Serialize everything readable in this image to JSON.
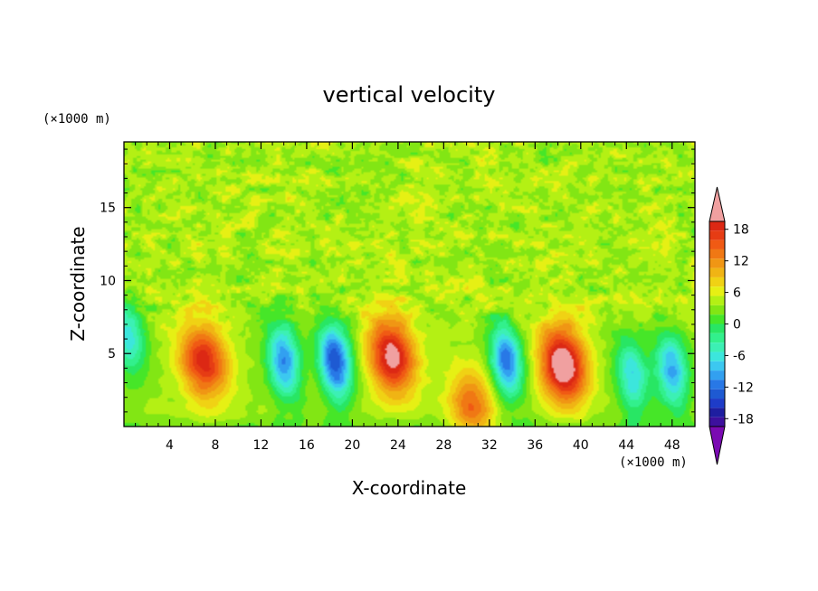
{
  "chart_data": {
    "type": "heatmap",
    "title": "vertical velocity",
    "xlabel": "X-coordinate",
    "ylabel": "Z-coordinate",
    "x_unit": "(×1000 m)",
    "y_unit": "(×1000 m)",
    "xlim": [
      0,
      50
    ],
    "ylim": [
      0,
      19.5
    ],
    "x_ticks": [
      4,
      8,
      12,
      16,
      20,
      24,
      28,
      32,
      36,
      40,
      44,
      48
    ],
    "y_ticks": [
      5,
      10,
      15
    ],
    "colorbar": {
      "levels": [
        -21,
        -19.5,
        -18,
        -16.5,
        -15,
        -13.5,
        -12,
        -10.5,
        -9,
        -7.5,
        -6,
        -4.5,
        -3,
        -1.5,
        0,
        1.5,
        3,
        4.5,
        6,
        7.5,
        9,
        10.5,
        12,
        13.5,
        15,
        16.5,
        18,
        19.5,
        21
      ],
      "tick_labels": [
        "18",
        "12",
        "6",
        "0",
        "-6",
        "-12",
        "-18"
      ],
      "tick_values": [
        18,
        12,
        6,
        0,
        -6,
        -12,
        -18
      ],
      "extend": "both",
      "colors": [
        "#7a0ab2",
        "#3d109e",
        "#1e1ea0",
        "#1e3cc8",
        "#1e5ad2",
        "#2878e6",
        "#32a0f0",
        "#3cc8f0",
        "#3ce6dc",
        "#3cf0b4",
        "#32f08c",
        "#28e664",
        "#46e628",
        "#82e614",
        "#b4f014",
        "#e6f014",
        "#f0d214",
        "#f0b414",
        "#f09614",
        "#f07814",
        "#f05a14",
        "#e63c14",
        "#dc2814",
        "#f0a0a0"
      ]
    },
    "features": [
      {
        "kind": "updraft",
        "x": 7,
        "z": 4.5,
        "peak": 13
      },
      {
        "kind": "downdraft",
        "x": 14,
        "z": 4.5,
        "peak": -12
      },
      {
        "kind": "downdraft",
        "x": 18.5,
        "z": 4.5,
        "peak": -15
      },
      {
        "kind": "updraft",
        "x": 23.5,
        "z": 4.8,
        "peak": 15
      },
      {
        "kind": "updraft",
        "x": 30.5,
        "z": 1.3,
        "peak": 9
      },
      {
        "kind": "downdraft",
        "x": 33.5,
        "z": 4.5,
        "peak": -13
      },
      {
        "kind": "updraft",
        "x": 38.5,
        "z": 4.2,
        "peak": 17
      },
      {
        "kind": "downdraft",
        "x": 44.5,
        "z": 3.5,
        "peak": -9
      },
      {
        "kind": "downdraft",
        "x": 48,
        "z": 3.8,
        "peak": -11
      },
      {
        "kind": "downdraft",
        "x": 0.5,
        "z": 6,
        "peak": -8
      }
    ]
  }
}
